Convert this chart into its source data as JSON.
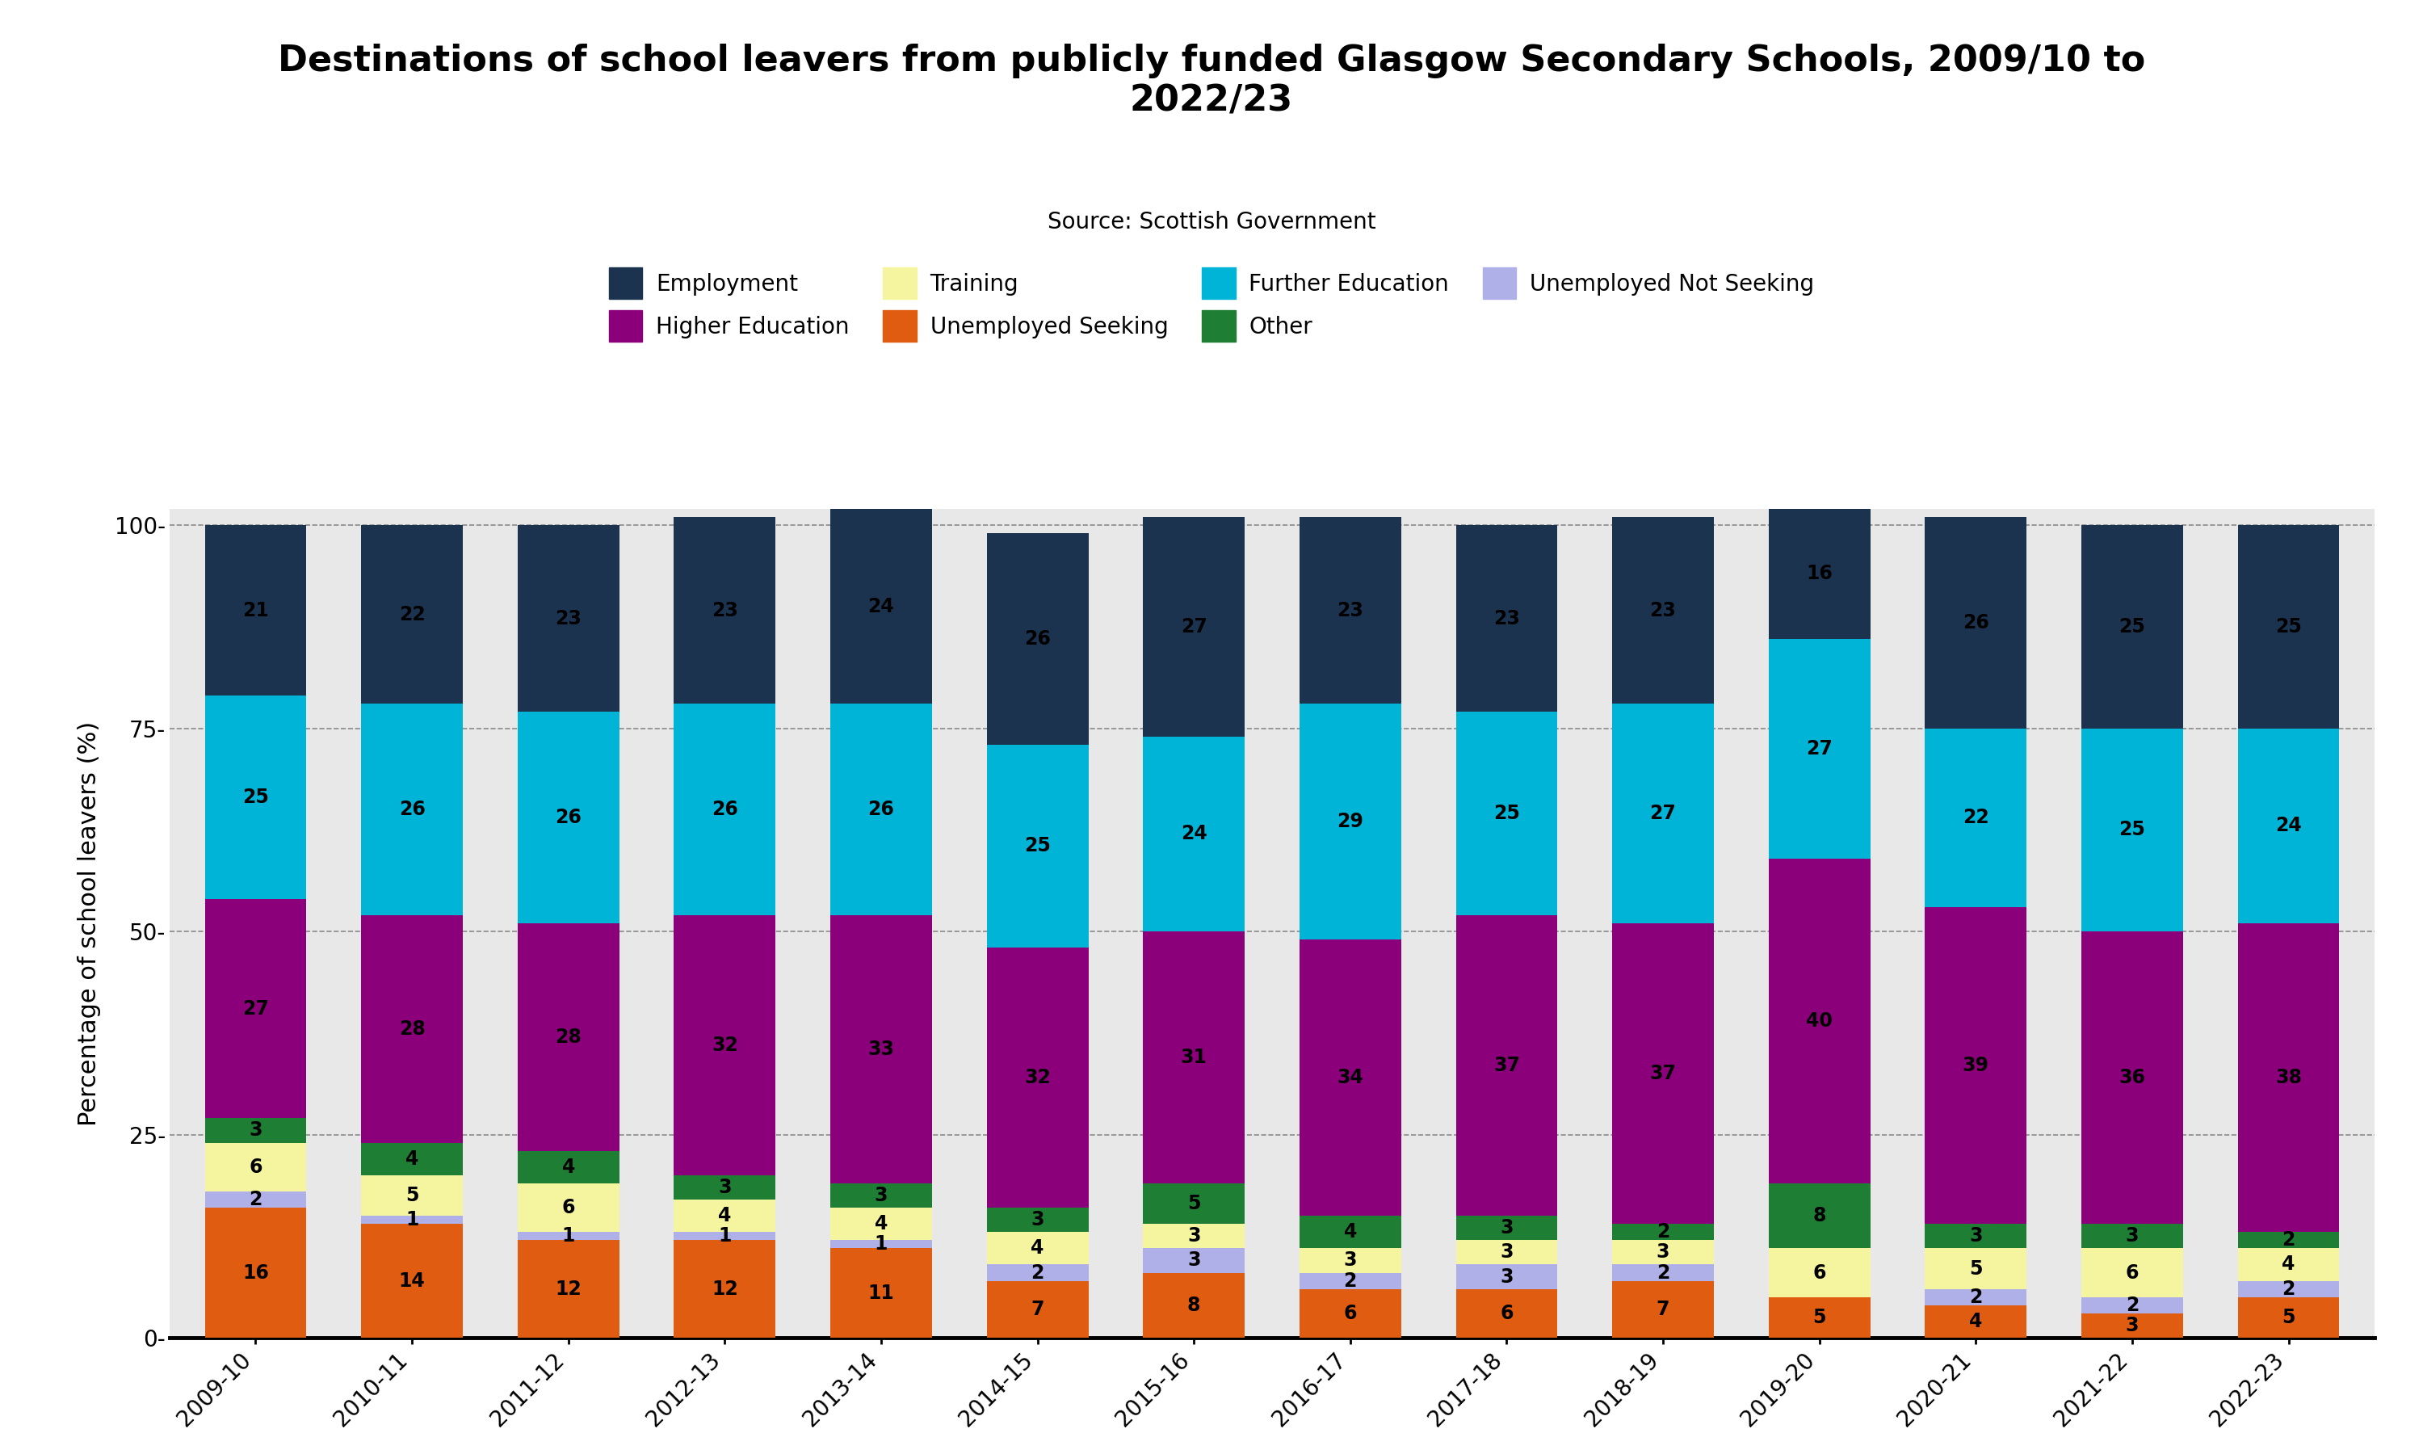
{
  "title": "Destinations of school leavers from publicly funded Glasgow Secondary Schools, 2009/10 to\n2022/23",
  "subtitle": "Source: Scottish Government",
  "ylabel": "Percentage of school leavers (%)",
  "years": [
    "2009-10",
    "2010-11",
    "2011-12",
    "2012-13",
    "2013-14",
    "2014-15",
    "2015-16",
    "2016-17",
    "2017-18",
    "2018-19",
    "2019-20",
    "2020-21",
    "2021-22",
    "2022-23"
  ],
  "stack_order": [
    "Unemployed Seeking",
    "Unemployed Not Seeking",
    "Training",
    "Other",
    "Higher Education",
    "Further Education",
    "Employment"
  ],
  "color_map": {
    "Employment": "#1c3350",
    "Further Education": "#00b4d8",
    "Higher Education": "#8b007a",
    "Other": "#1e7e34",
    "Training": "#f5f5a0",
    "Unemployed Not Seeking": "#b0b0e8",
    "Unemployed Seeking": "#e05c10"
  },
  "data": {
    "Employment": [
      21,
      22,
      23,
      23,
      24,
      26,
      27,
      23,
      23,
      23,
      16,
      26,
      25,
      25
    ],
    "Further Education": [
      25,
      26,
      26,
      26,
      26,
      25,
      24,
      29,
      25,
      27,
      27,
      22,
      25,
      24
    ],
    "Higher Education": [
      27,
      28,
      28,
      32,
      33,
      32,
      31,
      34,
      37,
      37,
      40,
      39,
      36,
      38
    ],
    "Other": [
      3,
      4,
      4,
      3,
      3,
      3,
      5,
      4,
      3,
      2,
      8,
      3,
      3,
      2
    ],
    "Training": [
      6,
      5,
      6,
      4,
      4,
      4,
      3,
      3,
      3,
      3,
      6,
      5,
      6,
      4
    ],
    "Unemployed Not Seeking": [
      2,
      1,
      1,
      1,
      1,
      2,
      3,
      2,
      3,
      2,
      0,
      2,
      2,
      2
    ],
    "Unemployed Seeking": [
      16,
      14,
      12,
      12,
      11,
      7,
      8,
      6,
      6,
      7,
      5,
      4,
      3,
      5
    ]
  },
  "legend_order": [
    "Employment",
    "Higher Education",
    "Training",
    "Unemployed Seeking",
    "Further Education",
    "Other",
    "Unemployed Not Seeking"
  ],
  "background_color": "#e8e8e8",
  "fig_background": "#ffffff",
  "ylim": [
    0,
    100
  ],
  "bar_width": 0.65,
  "title_fontsize": 32,
  "subtitle_fontsize": 20,
  "axis_label_fontsize": 22,
  "tick_fontsize": 20,
  "legend_fontsize": 20,
  "value_fontsize": 17
}
